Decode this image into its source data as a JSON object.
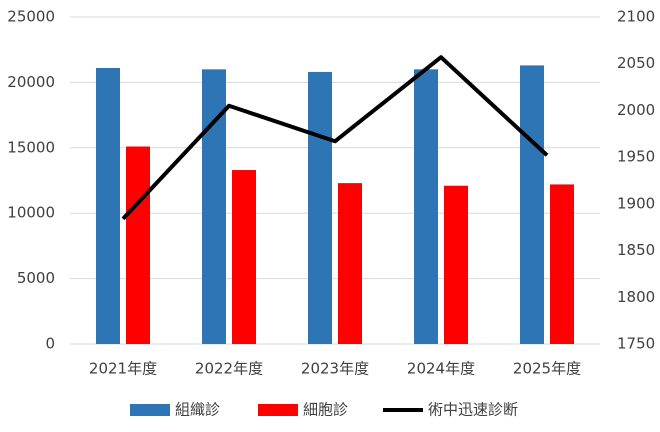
{
  "chart_data": {
    "type": "bar",
    "categories": [
      "2021年度",
      "2022年度",
      "2023年度",
      "2024年度",
      "2025年度"
    ],
    "series": [
      {
        "name": "組織診",
        "color": "#2e75b6",
        "values": [
          21100,
          21000,
          20800,
          21000,
          21300
        ]
      },
      {
        "name": "細胞診",
        "color": "#ff0000",
        "values": [
          15100,
          13300,
          12300,
          12100,
          12200
        ]
      },
      {
        "name": "術中迅速診断",
        "color": "#000000",
        "type": "line",
        "axis": "y2",
        "values": [
          1884,
          2005,
          1967,
          2057,
          1952
        ]
      }
    ],
    "ylim": [
      0,
      25000
    ],
    "yticks": [
      0,
      5000,
      10000,
      15000,
      20000,
      25000
    ],
    "y2lim": [
      1750,
      2100
    ],
    "y2ticks": [
      1750,
      1800,
      1850,
      1900,
      1950,
      2000,
      2050,
      2100
    ],
    "grid": true,
    "legend": "bottom"
  }
}
